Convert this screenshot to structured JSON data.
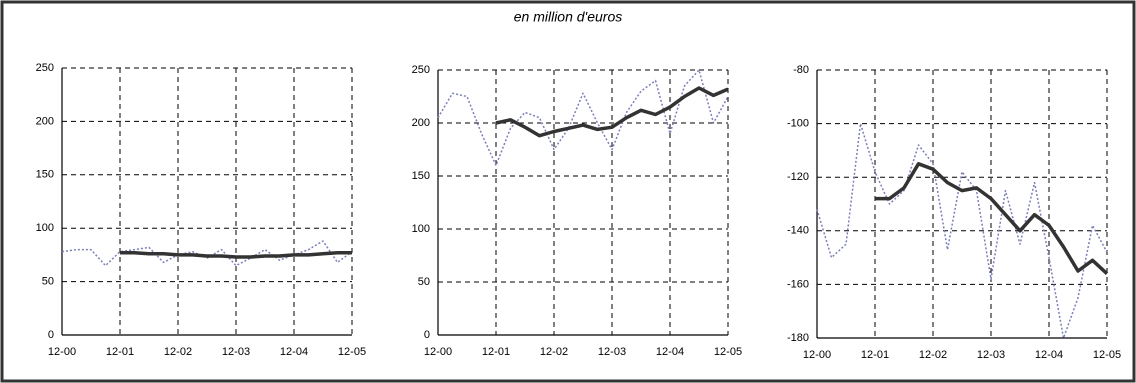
{
  "title": "en million d'euros",
  "chart_data": [
    {
      "type": "line",
      "grid": true,
      "xlim": [
        0,
        60
      ],
      "xticks": [
        {
          "value": 0,
          "label": "12-00"
        },
        {
          "value": 12,
          "label": "12-01"
        },
        {
          "value": 24,
          "label": "12-02"
        },
        {
          "value": 36,
          "label": "12-03"
        },
        {
          "value": 48,
          "label": "12-04"
        },
        {
          "value": 60,
          "label": "12-05"
        }
      ],
      "ylim": [
        0,
        250
      ],
      "yticks": [
        0,
        50,
        100,
        150,
        200,
        250
      ],
      "series": [
        {
          "color": "#7a7fb8",
          "style": "dotted",
          "x": [
            0,
            3,
            6,
            9,
            12,
            15,
            18,
            21,
            24,
            27,
            30,
            33,
            36,
            39,
            42,
            45,
            48,
            51,
            54,
            57,
            60
          ],
          "values": [
            78,
            80,
            80,
            65,
            78,
            80,
            82,
            68,
            75,
            78,
            72,
            80,
            65,
            72,
            80,
            70,
            75,
            80,
            88,
            68,
            78
          ]
        },
        {
          "color": "#333333",
          "style": "solid",
          "x": [
            12,
            15,
            18,
            21,
            24,
            27,
            30,
            33,
            36,
            39,
            42,
            45,
            48,
            51,
            54,
            57,
            60
          ],
          "values": [
            77,
            77,
            76,
            76,
            75,
            75,
            74,
            74,
            73,
            73,
            74,
            74,
            75,
            75,
            76,
            77,
            77
          ]
        }
      ]
    },
    {
      "type": "line",
      "grid": true,
      "xlim": [
        0,
        60
      ],
      "xticks": [
        {
          "value": 0,
          "label": "12-00"
        },
        {
          "value": 12,
          "label": "12-01"
        },
        {
          "value": 24,
          "label": "12-02"
        },
        {
          "value": 36,
          "label": "12-03"
        },
        {
          "value": 48,
          "label": "12-04"
        },
        {
          "value": 60,
          "label": "12-05"
        }
      ],
      "ylim": [
        0,
        250
      ],
      "yticks": [
        0,
        50,
        100,
        150,
        200,
        250
      ],
      "series": [
        {
          "color": "#7a7fb8",
          "style": "dotted",
          "x": [
            0,
            3,
            6,
            9,
            12,
            15,
            18,
            21,
            24,
            27,
            30,
            33,
            36,
            39,
            42,
            45,
            48,
            51,
            54,
            57,
            60
          ],
          "values": [
            205,
            228,
            225,
            190,
            160,
            195,
            210,
            205,
            175,
            195,
            228,
            200,
            175,
            210,
            230,
            240,
            190,
            235,
            250,
            200,
            225
          ]
        },
        {
          "color": "#333333",
          "style": "solid",
          "x": [
            12,
            15,
            18,
            21,
            24,
            27,
            30,
            33,
            36,
            39,
            42,
            45,
            48,
            51,
            54,
            57,
            60
          ],
          "values": [
            200,
            203,
            196,
            188,
            192,
            195,
            198,
            194,
            196,
            205,
            212,
            208,
            215,
            225,
            233,
            226,
            232
          ]
        }
      ]
    },
    {
      "type": "line",
      "grid": true,
      "xlim": [
        0,
        60
      ],
      "xticks": [
        {
          "value": 0,
          "label": "12-00"
        },
        {
          "value": 12,
          "label": "12-01"
        },
        {
          "value": 24,
          "label": "12-02"
        },
        {
          "value": 36,
          "label": "12-03"
        },
        {
          "value": 48,
          "label": "12-04"
        },
        {
          "value": 60,
          "label": "12-05"
        }
      ],
      "ylim": [
        -180,
        -80
      ],
      "yticks": [
        -180,
        -160,
        -140,
        -120,
        -100,
        -80
      ],
      "series": [
        {
          "color": "#7a7fb8",
          "style": "dotted",
          "x": [
            0,
            3,
            6,
            9,
            12,
            15,
            18,
            21,
            24,
            27,
            30,
            33,
            36,
            39,
            42,
            45,
            48,
            51,
            54,
            57,
            60
          ],
          "values": [
            -132,
            -150,
            -145,
            -100,
            -118,
            -130,
            -125,
            -108,
            -115,
            -147,
            -118,
            -125,
            -158,
            -125,
            -145,
            -122,
            -150,
            -180,
            -165,
            -138,
            -148
          ]
        },
        {
          "color": "#333333",
          "style": "solid",
          "x": [
            12,
            15,
            18,
            21,
            24,
            27,
            30,
            33,
            36,
            39,
            42,
            45,
            48,
            51,
            54,
            57,
            60
          ],
          "values": [
            -128,
            -128,
            -124,
            -115,
            -117,
            -122,
            -125,
            -124,
            -128,
            -134,
            -140,
            -134,
            -138,
            -146,
            -155,
            -151,
            -156
          ]
        }
      ]
    }
  ]
}
